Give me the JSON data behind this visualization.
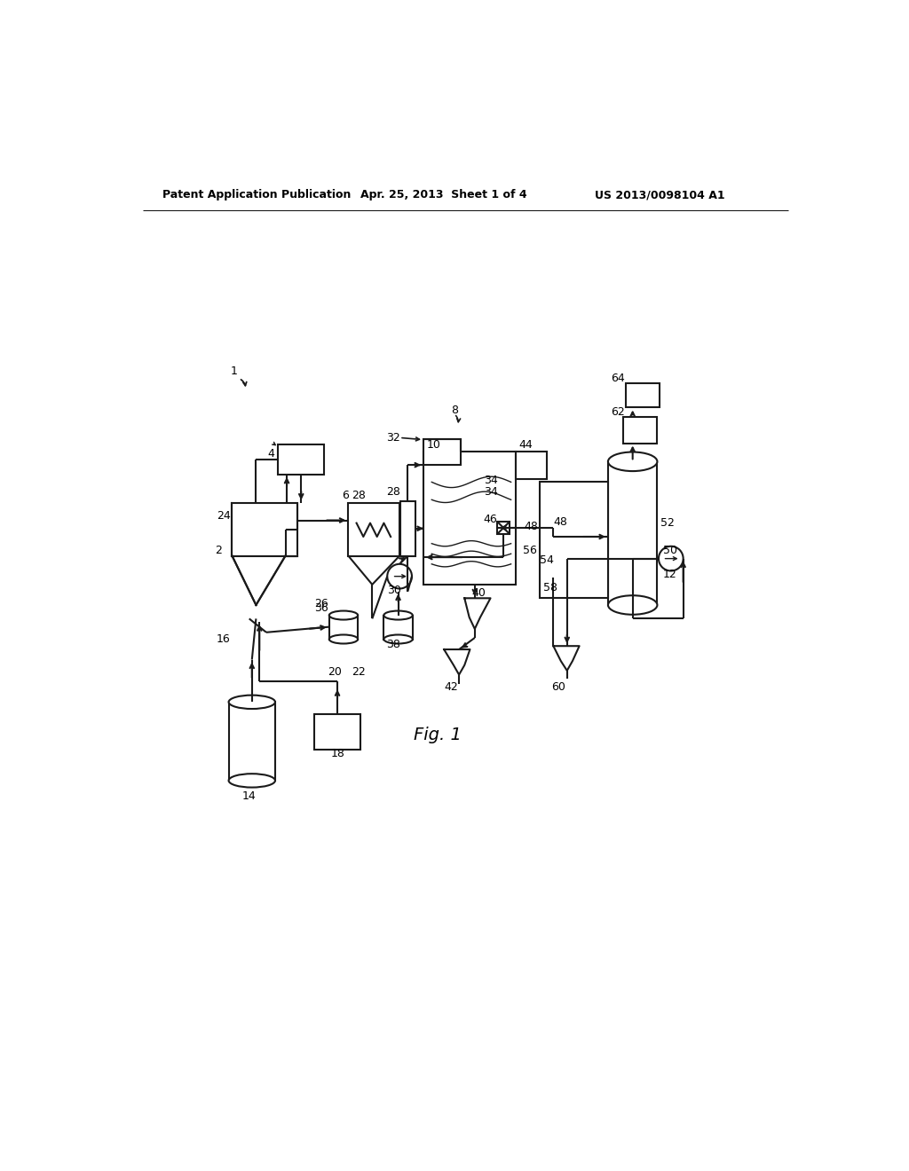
{
  "header_left": "Patent Application Publication",
  "header_center": "Apr. 25, 2013  Sheet 1 of 4",
  "header_right": "US 2013/0098104 A1",
  "figure_label": "Fig. 1",
  "bg_color": "#ffffff",
  "line_color": "#1a1a1a"
}
